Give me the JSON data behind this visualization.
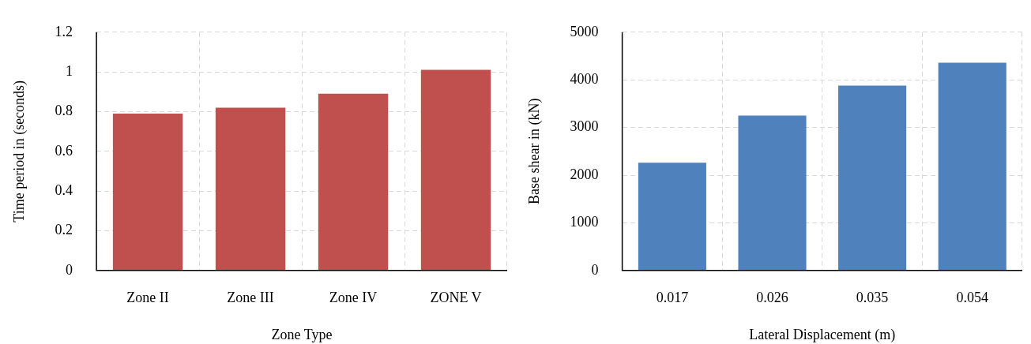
{
  "chart_data": [
    {
      "type": "bar",
      "xlabel": "Zone Type",
      "ylabel": "Time period in (seconds)",
      "categories": [
        "Zone II",
        "Zone III",
        "Zone IV",
        "ZONE V"
      ],
      "values": [
        0.79,
        0.82,
        0.89,
        1.01
      ],
      "color": "#c0504d",
      "ylim": [
        0,
        1.2
      ],
      "yticks": [
        0,
        0.2,
        0.4,
        0.6,
        0.8,
        1,
        1.2
      ],
      "grid": true
    },
    {
      "type": "bar",
      "xlabel": "Lateral Displacement (m)",
      "ylabel": "Base shear in (kN)",
      "categories": [
        "0.017",
        "0.026",
        "0.035",
        "0.054"
      ],
      "values": [
        2260,
        3250,
        3880,
        4360
      ],
      "color": "#4f81bd",
      "ylim": [
        0,
        5000
      ],
      "yticks": [
        0,
        1000,
        2000,
        3000,
        4000,
        5000
      ],
      "grid": true
    }
  ]
}
